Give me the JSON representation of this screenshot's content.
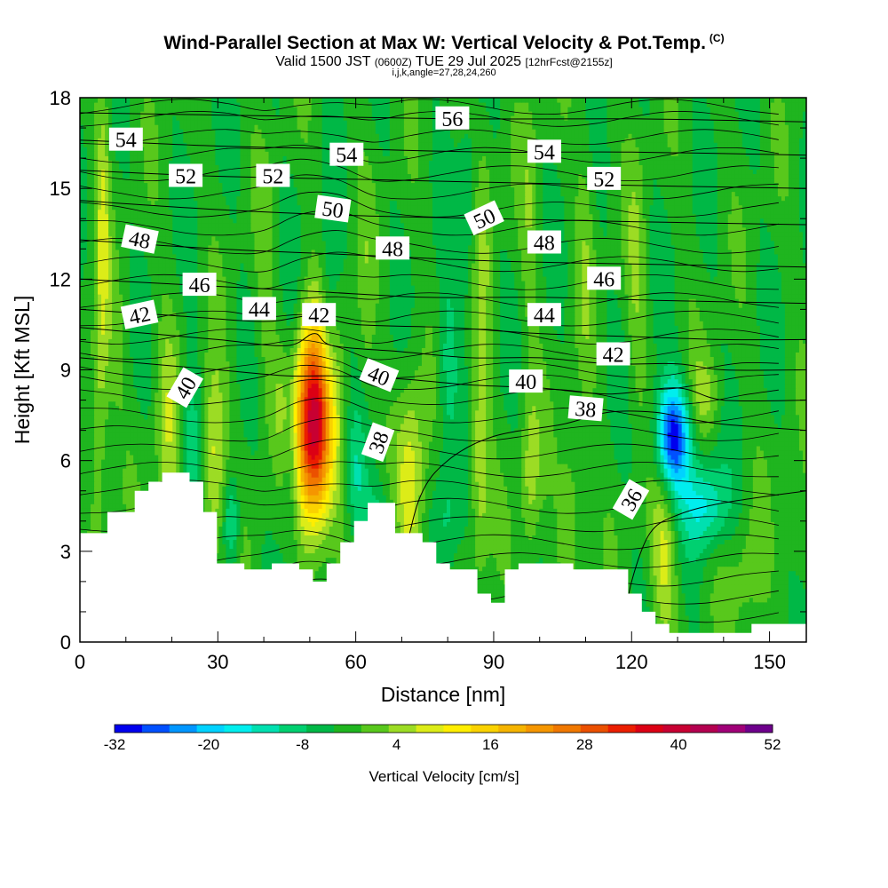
{
  "header": {
    "title": "Wind-Parallel Section at Max W: Vertical Velocity & Pot.Temp.",
    "copyright": "(C)",
    "valid_prefix": "Valid 1500 JST",
    "valid_zulu": "(0600Z)",
    "valid_date": "TUE 29 Jul 2025",
    "forecast_info": "[12hrFcst@2155z]",
    "indices": "i,j,k,angle=27,28,24,260"
  },
  "chart_data": {
    "type": "heatmap",
    "xlabel": "Distance [nm]",
    "ylabel": "Height [Kft MSL]",
    "xlim": [
      0,
      158
    ],
    "ylim": [
      0,
      18
    ],
    "x_ticks": [
      "0",
      "30",
      "60",
      "90",
      "120",
      "150"
    ],
    "y_ticks": [
      "0",
      "3",
      "6",
      "9",
      "12",
      "15",
      "18"
    ],
    "colorbar": {
      "label": "Vertical Velocity [cm/s]",
      "min": -32,
      "max": 52,
      "step": 4,
      "tick_labels": [
        "-32",
        "-20",
        "-8",
        "4",
        "16",
        "28",
        "40",
        "52"
      ],
      "colors": [
        "#0000ee",
        "#0050ff",
        "#0096ff",
        "#00d2ff",
        "#00eeee",
        "#00e0b0",
        "#00d070",
        "#00b846",
        "#1fb51f",
        "#58c81c",
        "#9cdc24",
        "#dcec18",
        "#ffee00",
        "#fad200",
        "#f5b400",
        "#f59600",
        "#f07800",
        "#eb5000",
        "#eb1e00",
        "#dc0014",
        "#c80032",
        "#b40050",
        "#a00078",
        "#6e008c"
      ]
    },
    "terrain_heights_kft": [
      3.6,
      3.6,
      4.3,
      4.3,
      5.0,
      5.3,
      5.6,
      5.6,
      5.3,
      4.3,
      2.6,
      2.6,
      2.4,
      2.4,
      2.6,
      2.6,
      2.4,
      2.0,
      2.6,
      3.3,
      4.0,
      4.6,
      4.6,
      3.6,
      3.6,
      3.3,
      2.6,
      2.4,
      2.4,
      1.6,
      1.3,
      2.4,
      2.6,
      2.6,
      2.6,
      2.6,
      2.4,
      2.4,
      2.4,
      2.4,
      1.6,
      1.0,
      0.6,
      0.3,
      0.3,
      0.3,
      0.3,
      0.3,
      0.3,
      0.6,
      0.6,
      0.6,
      0.6
    ],
    "w_features": [
      {
        "x": 51,
        "y": 7.2,
        "sx": 3,
        "sy": 2.3,
        "w": 52
      },
      {
        "x": 29,
        "y": 6.0,
        "sx": 1.8,
        "sy": 2.2,
        "w": 14
      },
      {
        "x": 19,
        "y": 7.0,
        "sx": 1.8,
        "sy": 2.5,
        "w": 9
      },
      {
        "x": 4,
        "y": 7.5,
        "sx": 1.5,
        "sy": 3.0,
        "w": 8
      },
      {
        "x": 72,
        "y": 5.0,
        "sx": 2.2,
        "sy": 2.5,
        "w": 14
      },
      {
        "x": 87,
        "y": 6.0,
        "sx": 1.5,
        "sy": 2.5,
        "w": 11
      },
      {
        "x": 98,
        "y": 5.5,
        "sx": 1.5,
        "sy": 2.0,
        "w": 9
      },
      {
        "x": 107,
        "y": 4.5,
        "sx": 2.0,
        "sy": 2.0,
        "w": 7
      },
      {
        "x": 127,
        "y": 2.8,
        "sx": 2.0,
        "sy": 2.0,
        "w": 11
      },
      {
        "x": 136,
        "y": 8.2,
        "sx": 2.5,
        "sy": 1.0,
        "w": 7
      },
      {
        "x": 45,
        "y": 8.0,
        "sx": 2.5,
        "sy": 1.5,
        "w": 6
      },
      {
        "x": 129,
        "y": 6.8,
        "sx": 2.5,
        "sy": 1.2,
        "w": -32
      },
      {
        "x": 136,
        "y": 4.5,
        "sx": 3.5,
        "sy": 1.0,
        "w": -14
      },
      {
        "x": 24,
        "y": 6.0,
        "sx": 1.5,
        "sy": 2.0,
        "w": -10
      },
      {
        "x": 33,
        "y": 4.0,
        "sx": 1.2,
        "sy": 1.0,
        "w": -12
      },
      {
        "x": 46,
        "y": 7.0,
        "sx": 1.5,
        "sy": 2.5,
        "w": -12
      },
      {
        "x": 54,
        "y": 10.0,
        "sx": 1.5,
        "sy": 2.5,
        "w": -10
      },
      {
        "x": 60,
        "y": 5.5,
        "sx": 1.5,
        "sy": 1.5,
        "w": -8
      },
      {
        "x": 80,
        "y": 9.0,
        "sx": 1.5,
        "sy": 2.0,
        "w": -8
      },
      {
        "x": 84,
        "y": 14.0,
        "sx": 1.5,
        "sy": 2.0,
        "w": -6
      },
      {
        "x": 65,
        "y": 3.8,
        "sx": 3.0,
        "sy": 1.2,
        "w": -7
      },
      {
        "x": 80,
        "y": 4.0,
        "sx": 2.0,
        "sy": 1.5,
        "w": -6
      },
      {
        "x": 5,
        "y": 14.0,
        "sx": 1.0,
        "sy": 3.5,
        "w": 10
      },
      {
        "x": 88,
        "y": 14.0,
        "sx": 1.5,
        "sy": 3.0,
        "w": 6
      },
      {
        "x": 121,
        "y": 12.0,
        "sx": 1.5,
        "sy": 3.0,
        "w": 6
      },
      {
        "x": 110,
        "y": 13.0,
        "sx": 1.5,
        "sy": 3.0,
        "w": 5
      },
      {
        "x": 98,
        "y": 14.0,
        "sx": 1.5,
        "sy": 3.0,
        "w": 5
      },
      {
        "x": 40,
        "y": 11.0,
        "sx": 1.5,
        "sy": 3.0,
        "w": 4
      },
      {
        "x": 62,
        "y": 11.0,
        "sx": 1.5,
        "sy": 3.0,
        "w": 4
      },
      {
        "x": 145,
        "y": 2.0,
        "sx": 3.0,
        "sy": 1.5,
        "w": 5
      },
      {
        "x": 156,
        "y": 3.5,
        "sx": 2.0,
        "sy": 1.5,
        "w": 4
      },
      {
        "x": 8,
        "y": 9.5,
        "sx": 1.5,
        "sy": 1.5,
        "w": 4
      }
    ],
    "theta_contours": [
      {
        "level": 36,
        "points": [
          [
            118,
            0.3
          ],
          [
            120,
            2.0
          ],
          [
            124,
            3.6
          ],
          [
            130,
            4.2
          ],
          [
            140,
            4.6
          ],
          [
            158,
            5.0
          ]
        ]
      },
      {
        "level": 38,
        "points": [
          [
            70,
            2.4
          ],
          [
            74,
            4.8
          ],
          [
            80,
            6.0
          ],
          [
            90,
            6.8
          ],
          [
            105,
            7.2
          ],
          [
            115,
            7.6
          ],
          [
            125,
            7.6
          ],
          [
            132,
            7.4
          ],
          [
            140,
            7.2
          ],
          [
            158,
            7.0
          ]
        ]
      },
      {
        "level": 40,
        "points": [
          [
            0,
            9.4
          ],
          [
            15,
            9.2
          ],
          [
            30,
            9.0
          ],
          [
            45,
            8.8
          ],
          [
            55,
            8.8
          ],
          [
            70,
            8.7
          ],
          [
            85,
            8.5
          ],
          [
            100,
            8.4
          ],
          [
            115,
            8.2
          ],
          [
            130,
            8.4
          ],
          [
            140,
            8.0
          ],
          [
            158,
            8.0
          ]
        ]
      },
      {
        "level": 42,
        "points": [
          [
            0,
            10.4
          ],
          [
            15,
            10.2
          ],
          [
            30,
            10.0
          ],
          [
            45,
            9.8
          ],
          [
            51,
            10.2
          ],
          [
            55,
            9.8
          ],
          [
            70,
            9.6
          ],
          [
            85,
            9.4
          ],
          [
            100,
            9.4
          ],
          [
            115,
            9.2
          ],
          [
            130,
            9.2
          ],
          [
            140,
            9.0
          ],
          [
            158,
            9.0
          ]
        ]
      },
      {
        "level": 44,
        "points": [
          [
            0,
            11.0
          ],
          [
            20,
            10.8
          ],
          [
            40,
            10.6
          ],
          [
            51,
            10.8
          ],
          [
            60,
            10.5
          ],
          [
            80,
            10.4
          ],
          [
            100,
            10.2
          ],
          [
            120,
            10.1
          ],
          [
            140,
            10.0
          ],
          [
            158,
            10.0
          ]
        ]
      },
      {
        "level": 46,
        "points": [
          [
            0,
            12.0
          ],
          [
            25,
            11.8
          ],
          [
            50,
            11.6
          ],
          [
            75,
            11.4
          ],
          [
            100,
            11.4
          ],
          [
            125,
            11.3
          ],
          [
            158,
            11.2
          ]
        ]
      },
      {
        "level": 48,
        "points": [
          [
            0,
            13.3
          ],
          [
            30,
            13.0
          ],
          [
            60,
            12.8
          ],
          [
            90,
            12.6
          ],
          [
            120,
            12.5
          ],
          [
            158,
            12.4
          ]
        ]
      },
      {
        "level": 50,
        "points": [
          [
            0,
            14.6
          ],
          [
            30,
            14.3
          ],
          [
            60,
            14.1
          ],
          [
            90,
            14.0
          ],
          [
            120,
            13.9
          ],
          [
            158,
            13.8
          ]
        ]
      },
      {
        "level": 52,
        "points": [
          [
            0,
            15.6
          ],
          [
            30,
            15.4
          ],
          [
            60,
            15.3
          ],
          [
            90,
            15.2
          ],
          [
            120,
            15.1
          ],
          [
            158,
            15.0
          ]
        ]
      },
      {
        "level": 54,
        "points": [
          [
            0,
            16.6
          ],
          [
            30,
            16.4
          ],
          [
            60,
            16.3
          ],
          [
            90,
            16.2
          ],
          [
            120,
            16.2
          ],
          [
            158,
            16.1
          ]
        ]
      },
      {
        "level": 56,
        "points": [
          [
            0,
            17.5
          ],
          [
            40,
            17.4
          ],
          [
            80,
            17.3
          ],
          [
            120,
            17.3
          ],
          [
            158,
            17.2
          ]
        ]
      }
    ],
    "extra_theta_lines_kft": [
      0.9,
      1.5,
      2.1,
      2.7,
      3.3,
      3.9,
      4.5,
      5.1,
      5.7,
      6.3,
      6.9,
      7.5,
      8.1,
      8.6,
      9.0,
      9.6,
      10.1,
      10.7,
      11.3,
      11.9,
      12.5,
      13.1,
      13.7,
      14.3,
      14.9,
      15.5,
      16.1,
      16.7,
      17.3,
      17.7
    ],
    "contour_labels": [
      {
        "text": "56",
        "x": 81,
        "y": 17.3,
        "angle": 0
      },
      {
        "text": "54",
        "x": 10,
        "y": 16.6,
        "angle": 0
      },
      {
        "text": "54",
        "x": 58,
        "y": 16.1,
        "angle": 0
      },
      {
        "text": "54",
        "x": 101,
        "y": 16.2,
        "angle": 0
      },
      {
        "text": "52",
        "x": 23,
        "y": 15.4,
        "angle": 0
      },
      {
        "text": "52",
        "x": 42,
        "y": 15.4,
        "angle": 0
      },
      {
        "text": "52",
        "x": 114,
        "y": 15.3,
        "angle": 0
      },
      {
        "text": "50",
        "x": 55,
        "y": 14.3,
        "angle": 8
      },
      {
        "text": "50",
        "x": 88,
        "y": 14.0,
        "angle": -25
      },
      {
        "text": "48",
        "x": 13,
        "y": 13.3,
        "angle": 12
      },
      {
        "text": "48",
        "x": 68,
        "y": 13.0,
        "angle": 0
      },
      {
        "text": "48",
        "x": 101,
        "y": 13.2,
        "angle": 0
      },
      {
        "text": "46",
        "x": 26,
        "y": 11.8,
        "angle": 0
      },
      {
        "text": "46",
        "x": 114,
        "y": 12.0,
        "angle": 0
      },
      {
        "text": "44",
        "x": 39,
        "y": 11.0,
        "angle": 0
      },
      {
        "text": "44",
        "x": 101,
        "y": 10.8,
        "angle": 0
      },
      {
        "text": "42",
        "x": 13,
        "y": 10.8,
        "angle": -12
      },
      {
        "text": "42",
        "x": 52,
        "y": 10.8,
        "angle": 0
      },
      {
        "text": "42",
        "x": 116,
        "y": 9.5,
        "angle": 0
      },
      {
        "text": "40",
        "x": 23,
        "y": 8.4,
        "angle": -60
      },
      {
        "text": "40",
        "x": 65,
        "y": 8.8,
        "angle": 22
      },
      {
        "text": "40",
        "x": 97,
        "y": 8.6,
        "angle": 0
      },
      {
        "text": "38",
        "x": 110,
        "y": 7.7,
        "angle": 5
      },
      {
        "text": "38",
        "x": 65,
        "y": 6.6,
        "angle": -70
      },
      {
        "text": "36",
        "x": 120,
        "y": 4.7,
        "angle": -60
      }
    ]
  }
}
